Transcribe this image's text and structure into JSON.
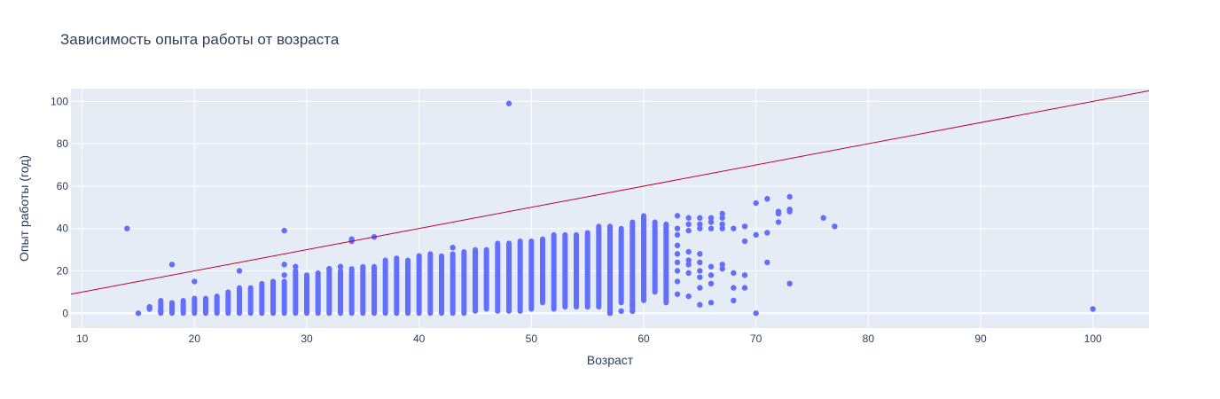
{
  "chart_data": {
    "type": "scatter",
    "title": "Зависимость опыта работы от возраста",
    "xlabel": "Возраст",
    "ylabel": "Опыт работы (год)",
    "xlim": [
      9,
      105
    ],
    "ylim": [
      -7,
      106
    ],
    "x_ticks": [
      10,
      20,
      30,
      40,
      50,
      60,
      70,
      80,
      90,
      100
    ],
    "y_ticks": [
      0,
      20,
      40,
      60,
      80,
      100
    ],
    "grid": true,
    "colors": {
      "points": "#636efa",
      "line": "#c2002f",
      "plot_bg": "#e5ecf6",
      "grid": "#ffffff",
      "text": "#2a3f5f"
    },
    "reference_line": {
      "x": [
        9,
        105
      ],
      "y": [
        9,
        105
      ]
    },
    "columns": [
      {
        "x": 17,
        "ymin": 0,
        "ymax": 6
      },
      {
        "x": 18,
        "ymin": 0,
        "ymax": 5
      },
      {
        "x": 19,
        "ymin": 0,
        "ymax": 6
      },
      {
        "x": 20,
        "ymin": 0,
        "ymax": 7
      },
      {
        "x": 21,
        "ymin": 0,
        "ymax": 7
      },
      {
        "x": 22,
        "ymin": 0,
        "ymax": 8
      },
      {
        "x": 23,
        "ymin": 0,
        "ymax": 10
      },
      {
        "x": 24,
        "ymin": 0,
        "ymax": 12
      },
      {
        "x": 25,
        "ymin": 0,
        "ymax": 12
      },
      {
        "x": 26,
        "ymin": 0,
        "ymax": 14
      },
      {
        "x": 27,
        "ymin": 0,
        "ymax": 15
      },
      {
        "x": 28,
        "ymin": 0,
        "ymax": 15
      },
      {
        "x": 29,
        "ymin": 0,
        "ymax": 20
      },
      {
        "x": 30,
        "ymin": 0,
        "ymax": 18
      },
      {
        "x": 31,
        "ymin": 0,
        "ymax": 19
      },
      {
        "x": 32,
        "ymin": 0,
        "ymax": 21
      },
      {
        "x": 33,
        "ymin": 0,
        "ymax": 20
      },
      {
        "x": 34,
        "ymin": 0,
        "ymax": 21
      },
      {
        "x": 35,
        "ymin": 0,
        "ymax": 22
      },
      {
        "x": 36,
        "ymin": 0,
        "ymax": 22
      },
      {
        "x": 37,
        "ymin": 0,
        "ymax": 25
      },
      {
        "x": 38,
        "ymin": 0,
        "ymax": 26
      },
      {
        "x": 39,
        "ymin": 0,
        "ymax": 25
      },
      {
        "x": 40,
        "ymin": 0,
        "ymax": 26
      },
      {
        "x": 41,
        "ymin": 0,
        "ymax": 28
      },
      {
        "x": 42,
        "ymin": 0,
        "ymax": 27
      },
      {
        "x": 43,
        "ymin": 0,
        "ymax": 28
      },
      {
        "x": 44,
        "ymin": 0,
        "ymax": 29
      },
      {
        "x": 45,
        "ymin": 1,
        "ymax": 30
      },
      {
        "x": 46,
        "ymin": 2,
        "ymax": 30
      },
      {
        "x": 47,
        "ymin": 1,
        "ymax": 33
      },
      {
        "x": 48,
        "ymin": 1,
        "ymax": 33
      },
      {
        "x": 49,
        "ymin": 1,
        "ymax": 34
      },
      {
        "x": 50,
        "ymin": 2,
        "ymax": 34
      },
      {
        "x": 51,
        "ymin": 5,
        "ymax": 35
      },
      {
        "x": 52,
        "ymin": 2,
        "ymax": 37
      },
      {
        "x": 53,
        "ymin": 3,
        "ymax": 37
      },
      {
        "x": 54,
        "ymin": 3,
        "ymax": 37
      },
      {
        "x": 55,
        "ymin": 3,
        "ymax": 38
      },
      {
        "x": 56,
        "ymin": 3,
        "ymax": 41
      },
      {
        "x": 57,
        "ymin": 1,
        "ymax": 41
      },
      {
        "x": 58,
        "ymin": 5,
        "ymax": 40
      },
      {
        "x": 59,
        "ymin": 2,
        "ymax": 43
      },
      {
        "x": 60,
        "ymin": 6,
        "ymax": 46
      },
      {
        "x": 61,
        "ymin": 10,
        "ymax": 43
      },
      {
        "x": 62,
        "ymin": 5,
        "ymax": 42
      }
    ],
    "points": [
      [
        14,
        40
      ],
      [
        15,
        0
      ],
      [
        16,
        2
      ],
      [
        16,
        3
      ],
      [
        17,
        1
      ],
      [
        18,
        23
      ],
      [
        20,
        15
      ],
      [
        24,
        20
      ],
      [
        28,
        39
      ],
      [
        28,
        23
      ],
      [
        28,
        18
      ],
      [
        29,
        22
      ],
      [
        32,
        21
      ],
      [
        33,
        22
      ],
      [
        34,
        34
      ],
      [
        34,
        35
      ],
      [
        36,
        36
      ],
      [
        40,
        27
      ],
      [
        43,
        31
      ],
      [
        48,
        99
      ],
      [
        57,
        0
      ],
      [
        58,
        1
      ],
      [
        59,
        4
      ],
      [
        59,
        1
      ],
      [
        63,
        46
      ],
      [
        63,
        40
      ],
      [
        63,
        37
      ],
      [
        63,
        32
      ],
      [
        63,
        28
      ],
      [
        63,
        24
      ],
      [
        63,
        20
      ],
      [
        63,
        15
      ],
      [
        63,
        9
      ],
      [
        64,
        45
      ],
      [
        64,
        42
      ],
      [
        64,
        39
      ],
      [
        64,
        29
      ],
      [
        64,
        25
      ],
      [
        64,
        23
      ],
      [
        64,
        19
      ],
      [
        64,
        8
      ],
      [
        65,
        45
      ],
      [
        65,
        42
      ],
      [
        65,
        40
      ],
      [
        65,
        28
      ],
      [
        65,
        24
      ],
      [
        65,
        20
      ],
      [
        65,
        17
      ],
      [
        65,
        12
      ],
      [
        65,
        4
      ],
      [
        66,
        45
      ],
      [
        66,
        43
      ],
      [
        66,
        40
      ],
      [
        66,
        22
      ],
      [
        66,
        18
      ],
      [
        66,
        14
      ],
      [
        66,
        5
      ],
      [
        67,
        47
      ],
      [
        67,
        45
      ],
      [
        67,
        42
      ],
      [
        67,
        40
      ],
      [
        67,
        23
      ],
      [
        67,
        21
      ],
      [
        68,
        40
      ],
      [
        68,
        19
      ],
      [
        68,
        12
      ],
      [
        68,
        6
      ],
      [
        69,
        41
      ],
      [
        69,
        34
      ],
      [
        69,
        18
      ],
      [
        69,
        12
      ],
      [
        70,
        52
      ],
      [
        70,
        37
      ],
      [
        70,
        0
      ],
      [
        71,
        54
      ],
      [
        71,
        38
      ],
      [
        71,
        24
      ],
      [
        72,
        48
      ],
      [
        72,
        47
      ],
      [
        72,
        43
      ],
      [
        73,
        55
      ],
      [
        73,
        49
      ],
      [
        73,
        48
      ],
      [
        73,
        14
      ],
      [
        76,
        45
      ],
      [
        77,
        41
      ],
      [
        100,
        2
      ]
    ]
  }
}
